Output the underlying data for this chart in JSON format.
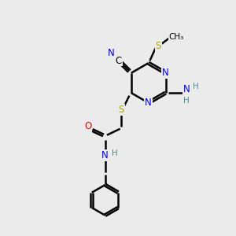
{
  "background_color": "#ebebeb",
  "atom_colors": {
    "C": "#000000",
    "N": "#0000ee",
    "O": "#ee0000",
    "S": "#aaaa00",
    "H": "#4a9090"
  },
  "bond_color": "#000000",
  "bond_width": 1.8,
  "figsize": [
    3.0,
    3.0
  ],
  "dpi": 100
}
